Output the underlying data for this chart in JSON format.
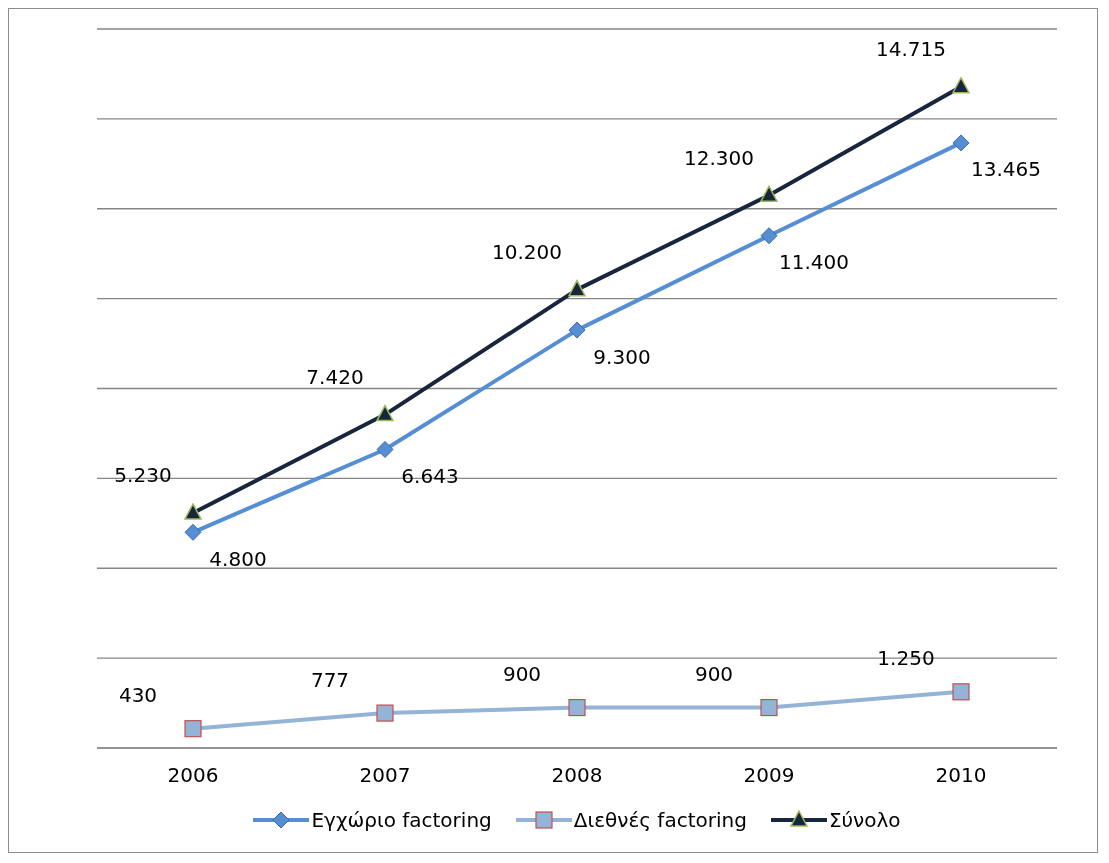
{
  "chart_data": {
    "type": "line",
    "categories": [
      "2006",
      "2007",
      "2008",
      "2009",
      "2010"
    ],
    "series": [
      {
        "name": "Εγχώριο factoring",
        "color": "#558ed5",
        "marker": "diamond",
        "values": [
          4800,
          6643,
          9300,
          11400,
          13465
        ],
        "value_labels": [
          "4.800",
          "6.643",
          "9.300",
          "11.400",
          "13.465"
        ]
      },
      {
        "name": "Διεθνές factoring",
        "color": "#95b3d7",
        "marker": "square",
        "values": [
          430,
          777,
          900,
          900,
          1250
        ],
        "value_labels": [
          "430",
          "777",
          "900",
          "900",
          "1.250"
        ]
      },
      {
        "name": "Σύνολο",
        "color": "#17253d",
        "marker": "triangle",
        "values": [
          5230,
          7420,
          10200,
          12300,
          14715
        ],
        "value_labels": [
          "5.230",
          "7.420",
          "10.200",
          "12.300",
          "14.715"
        ]
      }
    ],
    "ylim": [
      0,
      16000
    ],
    "grid": "y",
    "tick_labels": "x",
    "legend": "bottom",
    "line_style": "solid"
  }
}
